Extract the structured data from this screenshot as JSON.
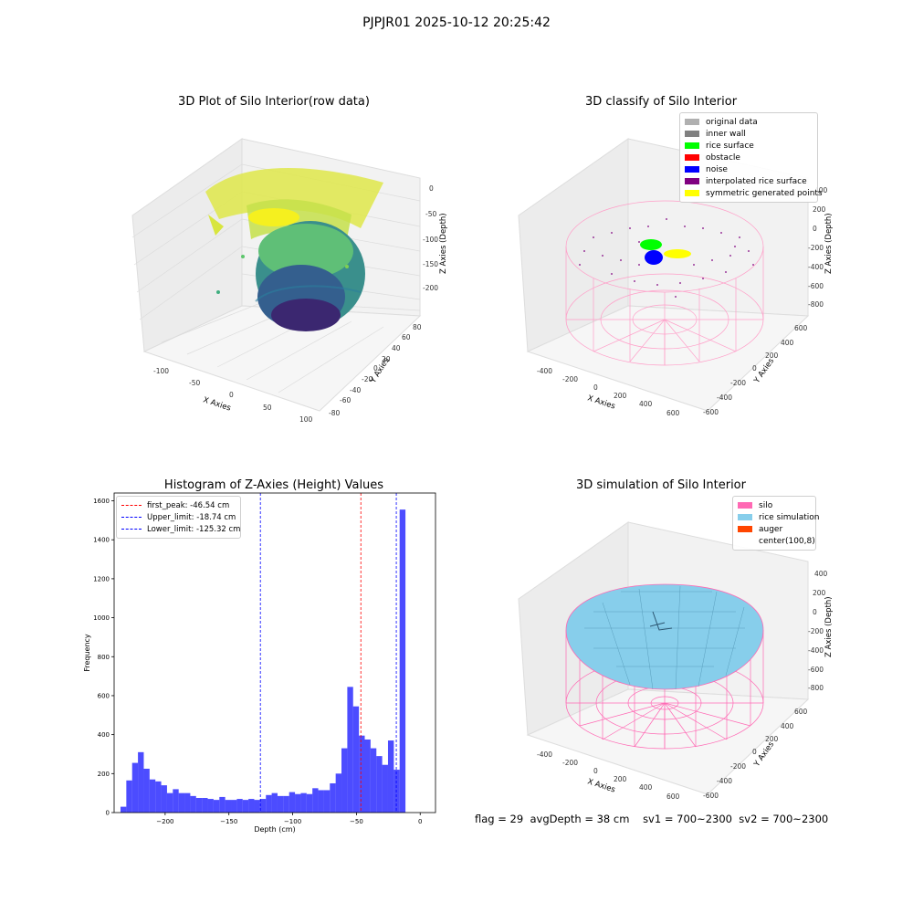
{
  "suptitle": "PJPJR01 2025-10-12 20:25:42",
  "panels": {
    "raw": {
      "title": "3D Plot of Silo Interior(row data)",
      "xlabel": "X Axies",
      "ylabel": "Y Axies",
      "zlabel": "Z Axies (Depth)",
      "xticks": [
        "-100",
        "-50",
        "0",
        "50",
        "100"
      ],
      "yticks": [
        "80",
        "60",
        "40",
        "20",
        "0",
        "-20",
        "-40",
        "-60",
        "-80"
      ],
      "zticks": [
        "0",
        "-50",
        "-100",
        "-150",
        "-200"
      ]
    },
    "classify": {
      "title": "3D classify of Silo Interior",
      "xlabel": "X Axies",
      "ylabel": "Y Axies",
      "zlabel": "Z Axies (Depth)",
      "xticks": [
        "-400",
        "-200",
        "0",
        "200",
        "400",
        "600"
      ],
      "yticks": [
        "600",
        "400",
        "200",
        "0",
        "-200",
        "-400",
        "-600"
      ],
      "zticks": [
        "400",
        "200",
        "0",
        "-200",
        "-400",
        "-600",
        "-800"
      ],
      "legend": [
        {
          "label": "original data",
          "color": "#b0b0b0"
        },
        {
          "label": "inner wall",
          "color": "#808080"
        },
        {
          "label": "rice surface",
          "color": "#00ff00"
        },
        {
          "label": "obstacle",
          "color": "#ff0000"
        },
        {
          "label": "noise",
          "color": "#0000ff"
        },
        {
          "label": "interpolated rice surface",
          "color": "#800080"
        },
        {
          "label": "symmetric generated points",
          "color": "#ffff00"
        }
      ]
    },
    "simulation": {
      "title": "3D simulation of Silo Interior",
      "xlabel": "X Axies",
      "ylabel": "Y Axies",
      "zlabel": "Z Axies (Depth)",
      "xticks": [
        "-400",
        "-200",
        "0",
        "200",
        "400",
        "600"
      ],
      "yticks": [
        "600",
        "400",
        "200",
        "0",
        "-200",
        "-400",
        "-600"
      ],
      "zticks": [
        "400",
        "200",
        "0",
        "-200",
        "-400",
        "-600",
        "-800"
      ],
      "legend": [
        {
          "label": "silo",
          "color": "#ff69b4"
        },
        {
          "label": "rice simulation",
          "color": "#87ceeb"
        },
        {
          "label": "auger",
          "color": "#ff4500"
        },
        {
          "label": "center(100,8)",
          "color": ""
        }
      ]
    }
  },
  "chart_data": {
    "type": "bar",
    "title": "Histogram of Z-Axies (Height) Values",
    "xlabel": "Depth (cm)",
    "ylabel": "Frequency",
    "xlim": [
      -240,
      12
    ],
    "ylim": [
      0,
      1640
    ],
    "xticks": [
      -200,
      -150,
      -100,
      -50,
      0
    ],
    "yticks": [
      0,
      200,
      400,
      600,
      800,
      1000,
      1200,
      1400,
      1600
    ],
    "bar_color": "#0000ff",
    "bin_start": -235,
    "bin_width": 4.56,
    "values": [
      30,
      165,
      255,
      310,
      225,
      170,
      160,
      140,
      100,
      120,
      100,
      100,
      85,
      75,
      75,
      70,
      65,
      80,
      65,
      65,
      70,
      65,
      70,
      65,
      70,
      90,
      100,
      85,
      85,
      105,
      95,
      100,
      95,
      125,
      115,
      115,
      150,
      200,
      330,
      645,
      545,
      395,
      375,
      330,
      290,
      245,
      370,
      220,
      1555
    ],
    "lines": [
      {
        "label": "first_peak: -46.54 cm",
        "x": -46.54,
        "color": "#ff0000"
      },
      {
        "label": "Upper_limit: -18.74 cm",
        "x": -18.74,
        "color": "#0000ff"
      },
      {
        "label": "Lower_limit: -125.32 cm",
        "x": -125.32,
        "color": "#0000ff"
      }
    ]
  },
  "footer": {
    "flag": "flag = 29",
    "avg": "avgDepth = 38 cm",
    "sv1": "sv1 = 700~2300",
    "sv2": "sv2 = 700~2300"
  }
}
